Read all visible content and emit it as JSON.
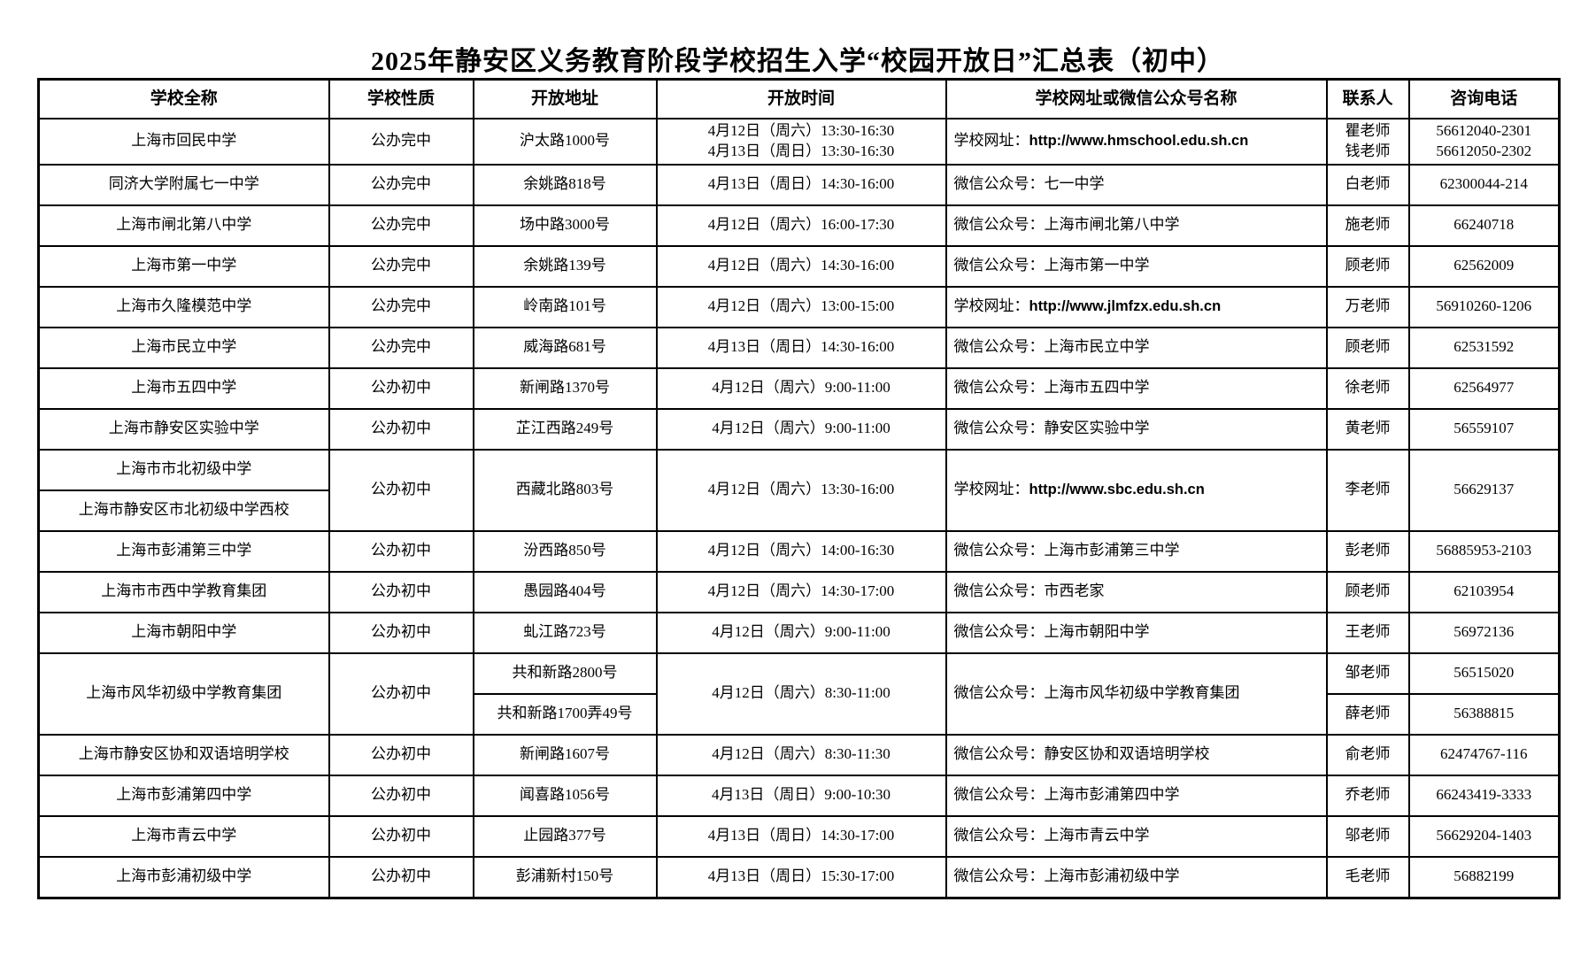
{
  "title": "2025年静安区义务教育阶段学校招生入学“校园开放日”汇总表（初中）",
  "table": {
    "headers": [
      {
        "k": "school",
        "label": "学校全称"
      },
      {
        "k": "type",
        "label": "学校性质"
      },
      {
        "k": "addr",
        "label": "开放地址"
      },
      {
        "k": "time",
        "label": "开放时间"
      },
      {
        "k": "site",
        "label": "学校网址或微信公众号名称"
      },
      {
        "k": "contact",
        "label": "联系人"
      },
      {
        "k": "phone",
        "label": "咨询电话"
      }
    ],
    "rows": [
      [
        {
          "k": "school",
          "t": [
            "上海市回民中学"
          ]
        },
        {
          "k": "type",
          "t": [
            "公办完中"
          ]
        },
        {
          "k": "addr",
          "t": [
            "沪太路1000号"
          ]
        },
        {
          "k": "time",
          "t": [
            "4月12日（周六）13:30-16:30",
            "4月13日（周日）13:30-16:30"
          ]
        },
        {
          "k": "site",
          "t": [
            "学校网址：http://www.hmschool.edu.sh.cn"
          ],
          "left": true
        },
        {
          "k": "contact",
          "t": [
            "瞿老师",
            "钱老师"
          ]
        },
        {
          "k": "phone",
          "t": [
            "56612040-2301",
            "56612050-2302"
          ]
        }
      ],
      [
        {
          "k": "school",
          "t": [
            "同济大学附属七一中学"
          ]
        },
        {
          "k": "type",
          "t": [
            "公办完中"
          ]
        },
        {
          "k": "addr",
          "t": [
            "余姚路818号"
          ]
        },
        {
          "k": "time",
          "t": [
            "4月13日（周日）14:30-16:00"
          ]
        },
        {
          "k": "site",
          "t": [
            "微信公众号：七一中学"
          ],
          "left": true
        },
        {
          "k": "contact",
          "t": [
            "白老师"
          ]
        },
        {
          "k": "phone",
          "t": [
            "62300044-214"
          ]
        }
      ],
      [
        {
          "k": "school",
          "t": [
            "上海市闸北第八中学"
          ]
        },
        {
          "k": "type",
          "t": [
            "公办完中"
          ]
        },
        {
          "k": "addr",
          "t": [
            "场中路3000号"
          ]
        },
        {
          "k": "time",
          "t": [
            "4月12日（周六）16:00-17:30"
          ]
        },
        {
          "k": "site",
          "t": [
            "微信公众号：上海市闸北第八中学"
          ],
          "left": true
        },
        {
          "k": "contact",
          "t": [
            "施老师"
          ]
        },
        {
          "k": "phone",
          "t": [
            "66240718"
          ]
        }
      ],
      [
        {
          "k": "school",
          "t": [
            "上海市第一中学"
          ]
        },
        {
          "k": "type",
          "t": [
            "公办完中"
          ]
        },
        {
          "k": "addr",
          "t": [
            "余姚路139号"
          ]
        },
        {
          "k": "time",
          "t": [
            "4月12日（周六）14:30-16:00"
          ]
        },
        {
          "k": "site",
          "t": [
            "微信公众号：上海市第一中学"
          ],
          "left": true
        },
        {
          "k": "contact",
          "t": [
            "顾老师"
          ]
        },
        {
          "k": "phone",
          "t": [
            "62562009"
          ]
        }
      ],
      [
        {
          "k": "school",
          "t": [
            "上海市久隆模范中学"
          ]
        },
        {
          "k": "type",
          "t": [
            "公办完中"
          ]
        },
        {
          "k": "addr",
          "t": [
            "岭南路101号"
          ]
        },
        {
          "k": "time",
          "t": [
            "4月12日（周六）13:00-15:00"
          ]
        },
        {
          "k": "site",
          "t": [
            "学校网址：http://www.jlmfzx.edu.sh.cn"
          ],
          "left": true
        },
        {
          "k": "contact",
          "t": [
            "万老师"
          ]
        },
        {
          "k": "phone",
          "t": [
            "56910260-1206"
          ]
        }
      ],
      [
        {
          "k": "school",
          "t": [
            "上海市民立中学"
          ]
        },
        {
          "k": "type",
          "t": [
            "公办完中"
          ]
        },
        {
          "k": "addr",
          "t": [
            "威海路681号"
          ]
        },
        {
          "k": "time",
          "t": [
            "4月13日（周日）14:30-16:00"
          ]
        },
        {
          "k": "site",
          "t": [
            "微信公众号：上海市民立中学"
          ],
          "left": true
        },
        {
          "k": "contact",
          "t": [
            "顾老师"
          ]
        },
        {
          "k": "phone",
          "t": [
            "62531592"
          ]
        }
      ],
      [
        {
          "k": "school",
          "t": [
            "上海市五四中学"
          ]
        },
        {
          "k": "type",
          "t": [
            "公办初中"
          ]
        },
        {
          "k": "addr",
          "t": [
            "新闸路1370号"
          ]
        },
        {
          "k": "time",
          "t": [
            "4月12日（周六）9:00-11:00"
          ]
        },
        {
          "k": "site",
          "t": [
            "微信公众号：上海市五四中学"
          ],
          "left": true
        },
        {
          "k": "contact",
          "t": [
            "徐老师"
          ]
        },
        {
          "k": "phone",
          "t": [
            "62564977"
          ]
        }
      ],
      [
        {
          "k": "school",
          "t": [
            "上海市静安区实验中学"
          ]
        },
        {
          "k": "type",
          "t": [
            "公办初中"
          ]
        },
        {
          "k": "addr",
          "t": [
            "芷江西路249号"
          ]
        },
        {
          "k": "time",
          "t": [
            "4月12日（周六）9:00-11:00"
          ]
        },
        {
          "k": "site",
          "t": [
            "微信公众号：静安区实验中学"
          ],
          "left": true
        },
        {
          "k": "contact",
          "t": [
            "黄老师"
          ]
        },
        {
          "k": "phone",
          "t": [
            "56559107"
          ]
        }
      ],
      [
        {
          "k": "school",
          "t": [
            "上海市市北初级中学"
          ]
        },
        {
          "k": "type",
          "t": [
            "公办初中"
          ],
          "rs": 2
        },
        {
          "k": "addr",
          "t": [
            "西藏北路803号"
          ],
          "rs": 2
        },
        {
          "k": "time",
          "t": [
            "4月12日（周六）13:30-16:00"
          ],
          "rs": 2
        },
        {
          "k": "site",
          "t": [
            "学校网址：http://www.sbc.edu.sh.cn"
          ],
          "left": true,
          "rs": 2
        },
        {
          "k": "contact",
          "t": [
            "李老师"
          ],
          "rs": 2
        },
        {
          "k": "phone",
          "t": [
            "56629137"
          ],
          "rs": 2
        }
      ],
      [
        {
          "k": "school",
          "t": [
            "上海市静安区市北初级中学西校"
          ]
        }
      ],
      [
        {
          "k": "school",
          "t": [
            "上海市彭浦第三中学"
          ]
        },
        {
          "k": "type",
          "t": [
            "公办初中"
          ]
        },
        {
          "k": "addr",
          "t": [
            "汾西路850号"
          ]
        },
        {
          "k": "time",
          "t": [
            "4月12日（周六）14:00-16:30"
          ]
        },
        {
          "k": "site",
          "t": [
            "微信公众号：上海市彭浦第三中学"
          ],
          "left": true
        },
        {
          "k": "contact",
          "t": [
            "彭老师"
          ]
        },
        {
          "k": "phone",
          "t": [
            "56885953-2103"
          ]
        }
      ],
      [
        {
          "k": "school",
          "t": [
            "上海市市西中学教育集团"
          ]
        },
        {
          "k": "type",
          "t": [
            "公办初中"
          ]
        },
        {
          "k": "addr",
          "t": [
            "愚园路404号"
          ]
        },
        {
          "k": "time",
          "t": [
            "4月12日（周六）14:30-17:00"
          ]
        },
        {
          "k": "site",
          "t": [
            "微信公众号：市西老家"
          ],
          "left": true
        },
        {
          "k": "contact",
          "t": [
            "顾老师"
          ]
        },
        {
          "k": "phone",
          "t": [
            "62103954"
          ]
        }
      ],
      [
        {
          "k": "school",
          "t": [
            "上海市朝阳中学"
          ]
        },
        {
          "k": "type",
          "t": [
            "公办初中"
          ]
        },
        {
          "k": "addr",
          "t": [
            "虬江路723号"
          ]
        },
        {
          "k": "time",
          "t": [
            "4月12日（周六）9:00-11:00"
          ]
        },
        {
          "k": "site",
          "t": [
            "微信公众号：上海市朝阳中学"
          ],
          "left": true
        },
        {
          "k": "contact",
          "t": [
            "王老师"
          ]
        },
        {
          "k": "phone",
          "t": [
            "56972136"
          ]
        }
      ],
      [
        {
          "k": "school",
          "t": [
            "上海市风华初级中学教育集团"
          ],
          "rs": 2
        },
        {
          "k": "type",
          "t": [
            "公办初中"
          ],
          "rs": 2
        },
        {
          "k": "addr",
          "t": [
            "共和新路2800号"
          ]
        },
        {
          "k": "time",
          "t": [
            "4月12日（周六）8:30-11:00"
          ],
          "rs": 2
        },
        {
          "k": "site",
          "t": [
            "微信公众号：上海市风华初级中学教育集团"
          ],
          "left": true,
          "rs": 2
        },
        {
          "k": "contact",
          "t": [
            "邹老师"
          ]
        },
        {
          "k": "phone",
          "t": [
            "56515020"
          ]
        }
      ],
      [
        {
          "k": "addr",
          "t": [
            "共和新路1700弄49号"
          ]
        },
        {
          "k": "contact",
          "t": [
            "薛老师"
          ]
        },
        {
          "k": "phone",
          "t": [
            "56388815"
          ]
        }
      ],
      [
        {
          "k": "school",
          "t": [
            "上海市静安区协和双语培明学校"
          ]
        },
        {
          "k": "type",
          "t": [
            "公办初中"
          ]
        },
        {
          "k": "addr",
          "t": [
            "新闸路1607号"
          ]
        },
        {
          "k": "time",
          "t": [
            "4月12日（周六）8:30-11:30"
          ]
        },
        {
          "k": "site",
          "t": [
            "微信公众号：静安区协和双语培明学校"
          ],
          "left": true
        },
        {
          "k": "contact",
          "t": [
            "俞老师"
          ]
        },
        {
          "k": "phone",
          "t": [
            "62474767-116"
          ]
        }
      ],
      [
        {
          "k": "school",
          "t": [
            "上海市彭浦第四中学"
          ]
        },
        {
          "k": "type",
          "t": [
            "公办初中"
          ]
        },
        {
          "k": "addr",
          "t": [
            "闻喜路1056号"
          ]
        },
        {
          "k": "time",
          "t": [
            "4月13日（周日）9:00-10:30"
          ]
        },
        {
          "k": "site",
          "t": [
            "微信公众号：上海市彭浦第四中学"
          ],
          "left": true
        },
        {
          "k": "contact",
          "t": [
            "乔老师"
          ]
        },
        {
          "k": "phone",
          "t": [
            "66243419-3333"
          ]
        }
      ],
      [
        {
          "k": "school",
          "t": [
            "上海市青云中学"
          ]
        },
        {
          "k": "type",
          "t": [
            "公办初中"
          ]
        },
        {
          "k": "addr",
          "t": [
            "止园路377号"
          ]
        },
        {
          "k": "time",
          "t": [
            "4月13日（周日）14:30-17:00"
          ]
        },
        {
          "k": "site",
          "t": [
            "微信公众号：上海市青云中学"
          ],
          "left": true
        },
        {
          "k": "contact",
          "t": [
            "邬老师"
          ]
        },
        {
          "k": "phone",
          "t": [
            "56629204-1403"
          ]
        }
      ],
      [
        {
          "k": "school",
          "t": [
            "上海市彭浦初级中学"
          ]
        },
        {
          "k": "type",
          "t": [
            "公办初中"
          ]
        },
        {
          "k": "addr",
          "t": [
            "彭浦新村150号"
          ]
        },
        {
          "k": "time",
          "t": [
            "4月13日（周日）15:30-17:00"
          ]
        },
        {
          "k": "site",
          "t": [
            "微信公众号：上海市彭浦初级中学"
          ],
          "left": true
        },
        {
          "k": "contact",
          "t": [
            "毛老师"
          ]
        },
        {
          "k": "phone",
          "t": [
            "56882199"
          ]
        }
      ]
    ]
  }
}
